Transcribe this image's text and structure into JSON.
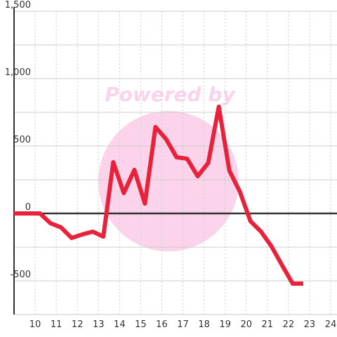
{
  "chart_data": {
    "type": "line",
    "watermark": "Powered by",
    "x": [
      9,
      10.23,
      10.73,
      11.23,
      11.73,
      12.23,
      12.73,
      13.23,
      13.7,
      14.2,
      14.7,
      15.2,
      15.7,
      16.2,
      16.7,
      17.2,
      17.7,
      18.2,
      18.7,
      19.2,
      19.7,
      20.2,
      20.7,
      21.2,
      21.7,
      22.2,
      22.7
    ],
    "series": [
      {
        "color": "#e8223a",
        "values": [
          0,
          0,
          -73,
          -104,
          -182,
          -156,
          -135,
          -172,
          380,
          151,
          323,
          73,
          641,
          552,
          417,
          406,
          276,
          375,
          792,
          318,
          161,
          -57,
          -135,
          -245,
          -385,
          -521,
          -521
        ]
      }
    ],
    "xlim": [
      9,
      24.3
    ],
    "xticks": [
      10,
      11,
      12,
      13,
      14,
      15,
      16,
      17,
      18,
      19,
      20,
      21,
      22,
      23,
      24
    ],
    "ylim": [
      -750,
      1500
    ],
    "yticks": [
      -500,
      0,
      500,
      {
        "value": 1000,
        "label": "1,000"
      },
      {
        "value": 1500,
        "label": "1,500"
      }
    ],
    "grid": true
  }
}
